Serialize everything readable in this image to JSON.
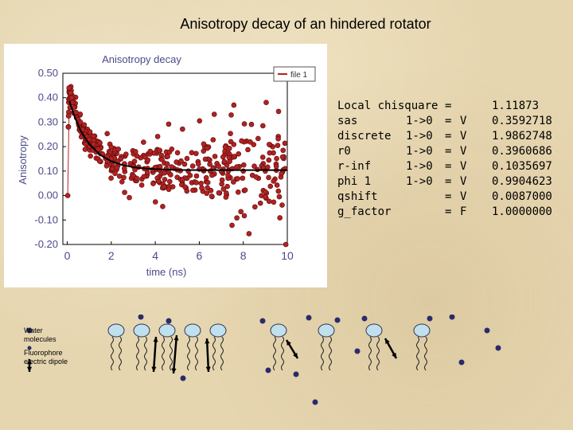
{
  "slide_title": "Anisotropy decay of an hindered rotator",
  "chart_data": {
    "type": "scatter",
    "title": "Anisotropy decay",
    "xlabel": "time (ns)",
    "ylabel": "Anisotropy",
    "x_ticks": [
      "0",
      "2",
      "4",
      "6",
      "8",
      "10"
    ],
    "y_ticks": [
      "0.50",
      "0.40",
      "0.30",
      "0.20",
      "0.10",
      "0.00",
      "-0.10",
      "-0.20"
    ],
    "xlim": [
      -0.2,
      10
    ],
    "ylim": [
      -0.2,
      0.5
    ],
    "legend": "file 1",
    "legend_position": "top-right",
    "grid": false,
    "series": [
      {
        "name": "file 1",
        "kind": "measured",
        "color": "#b22222",
        "x": [
          0.02,
          0.05,
          0.08,
          0.12,
          0.15,
          0.2,
          0.25,
          0.3,
          0.4,
          0.5,
          0.6,
          0.7,
          0.8,
          0.9,
          1.0,
          1.2,
          1.4,
          1.6,
          1.8,
          2.0,
          2.3,
          2.6,
          3.0,
          3.5,
          4.0,
          4.5,
          5.0,
          5.5,
          6.0,
          6.5,
          7.0,
          7.5,
          8.0,
          8.5,
          9.0,
          9.5,
          9.9
        ],
        "y": [
          0.0,
          0.28,
          0.44,
          0.36,
          0.42,
          0.4,
          0.38,
          0.36,
          0.34,
          0.31,
          0.3,
          0.27,
          0.25,
          0.24,
          0.23,
          0.21,
          0.19,
          0.17,
          0.16,
          0.15,
          0.14,
          0.13,
          0.12,
          0.11,
          0.115,
          0.11,
          0.105,
          0.1,
          0.108,
          0.1,
          0.1,
          0.11,
          0.1,
          0.12,
          0.1,
          0.12,
          0.11
        ]
      },
      {
        "name": "fit",
        "kind": "fit",
        "color": "#000000",
        "x": [
          0.1,
          0.3,
          0.6,
          1.0,
          1.5,
          2.0,
          2.5,
          3.0,
          3.5,
          4.0,
          5.0,
          6.0,
          7.0,
          8.0,
          9.0,
          10.0
        ],
        "y": [
          0.386,
          0.33,
          0.266,
          0.21,
          0.166,
          0.14,
          0.125,
          0.116,
          0.111,
          0.108,
          0.105,
          0.104,
          0.104,
          0.104,
          0.104,
          0.104
        ]
      }
    ]
  },
  "fit_results": {
    "rows": [
      {
        "name": "Local chisquare",
        "range": "",
        "eq": "=",
        "flag": "",
        "value": "1.11873"
      },
      {
        "name": "sas",
        "range": "1->0",
        "eq": "=",
        "flag": "V",
        "value": "0.3592718"
      },
      {
        "name": "discrete",
        "range": "1->0",
        "eq": "=",
        "flag": "V",
        "value": "1.9862748"
      },
      {
        "name": "r0",
        "range": "1->0",
        "eq": "=",
        "flag": "V",
        "value": "0.3960686"
      },
      {
        "name": "r-inf",
        "range": "1->0",
        "eq": "=",
        "flag": "V",
        "value": "0.1035697"
      },
      {
        "name": "phi 1",
        "range": "1->0",
        "eq": "=",
        "flag": "V",
        "value": "0.9904623"
      },
      {
        "name": "qshift",
        "range": "",
        "eq": "=",
        "flag": "V",
        "value": "0.0087000"
      },
      {
        "name": "g_factor",
        "range": "",
        "eq": "=",
        "flag": "F",
        "value": "1.0000000"
      }
    ]
  },
  "schematic_legend": {
    "water": "Water molecules",
    "dipole": "Fluorophore electric dipole"
  },
  "colors": {
    "background": "#e6d6b0",
    "data_points": "#b22222",
    "axis_text": "#4a4a8a",
    "lipid_head": "#bfe0ec",
    "water_dot": "#2b2b6b"
  }
}
